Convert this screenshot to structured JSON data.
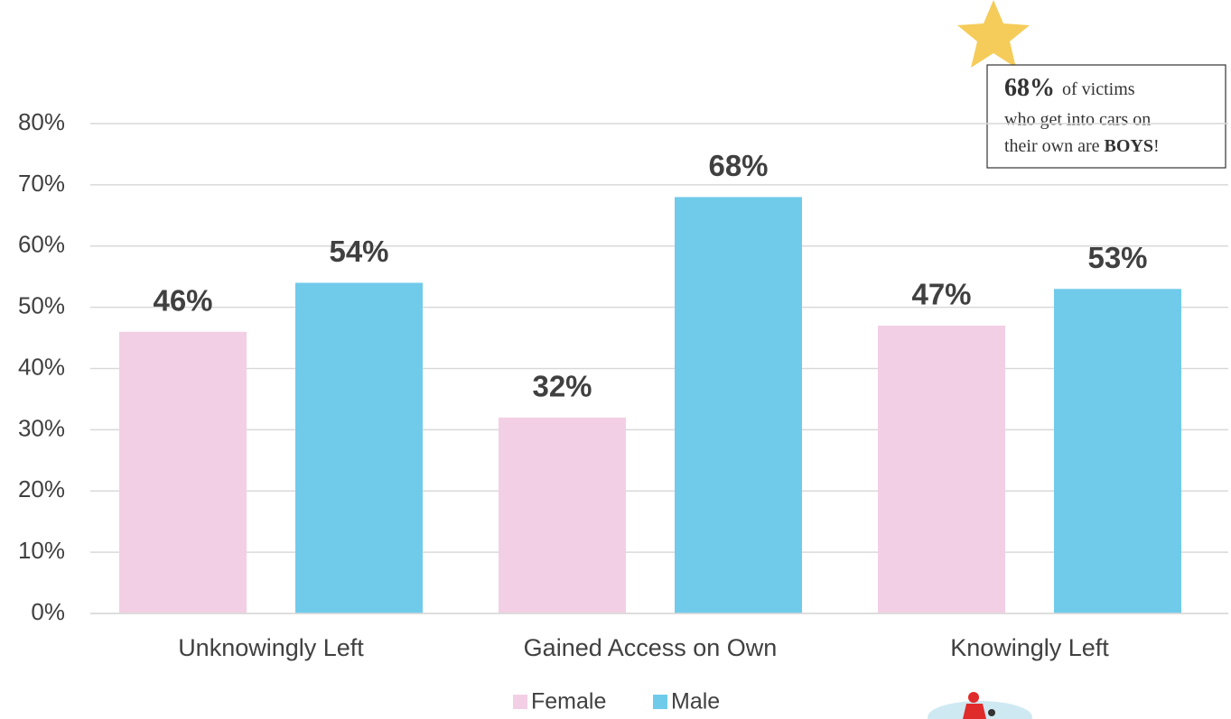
{
  "chart_data": {
    "type": "bar",
    "categories": [
      "Unknowingly Left",
      "Gained Access on Own",
      "Knowingly Left"
    ],
    "series": [
      {
        "name": "Female",
        "color": "#f2cfe4",
        "values": [
          46,
          32,
          47
        ],
        "value_labels": [
          "46%",
          "32%",
          "47%"
        ]
      },
      {
        "name": "Male",
        "color": "#70cbeb",
        "values": [
          54,
          68,
          53
        ],
        "value_labels": [
          "54%",
          "68%",
          "53%"
        ]
      }
    ],
    "ylim": [
      0,
      80
    ],
    "yticks": [
      {
        "value": 0,
        "label": "0%"
      },
      {
        "value": 10,
        "label": "10%"
      },
      {
        "value": 20,
        "label": "20%"
      },
      {
        "value": 30,
        "label": "30%"
      },
      {
        "value": 40,
        "label": "40%"
      },
      {
        "value": 50,
        "label": "50%"
      },
      {
        "value": 60,
        "label": "60%"
      },
      {
        "value": 70,
        "label": "70%"
      },
      {
        "value": 80,
        "label": "80%"
      }
    ],
    "grid": true,
    "legend": "bottom",
    "annotation": {
      "highlight": "68%",
      "lines": [
        "of victims",
        "who get into cars on",
        "their own are"
      ],
      "emphasis": "BOYS",
      "end": "!"
    }
  }
}
